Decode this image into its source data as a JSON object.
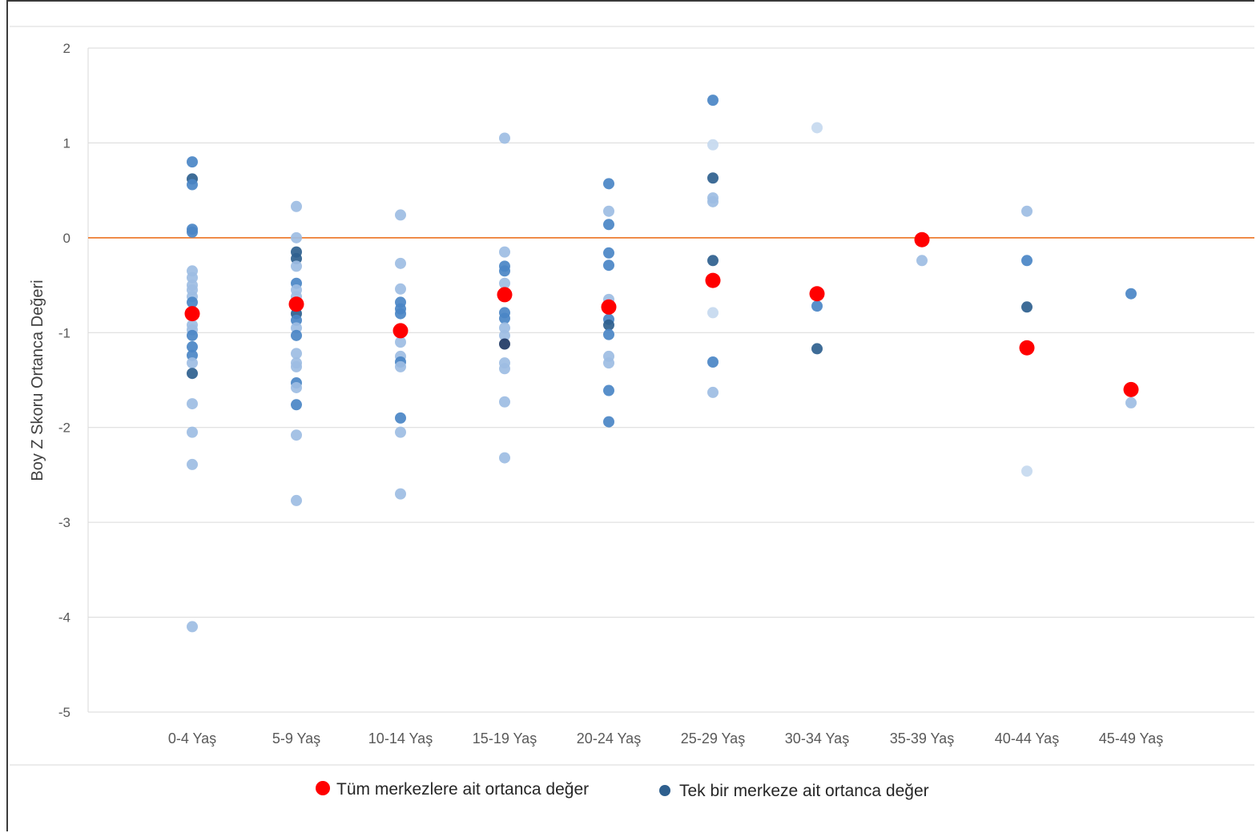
{
  "chart_data": {
    "type": "scatter",
    "ylabel": "Boy  Z Skoru Ortanca Değeri",
    "xlabel": "",
    "ylim": [
      -5,
      2
    ],
    "yticks": [
      "2",
      "1",
      "0",
      "-1",
      "-2",
      "-3",
      "-4",
      "-5"
    ],
    "categories": [
      "0-4 Yaş",
      "5-9 Yaş",
      "10-14 Yaş",
      "15-19 Yaş",
      "20-24 Yaş",
      "25-29 Yaş",
      "30-34 Yaş",
      "35-39 Yaş",
      "40-44 Yaş",
      "45-49 Yaş"
    ],
    "reference_line": {
      "y": 0,
      "color": "#ed7d31"
    },
    "grid": true,
    "legend_position": "bottom",
    "colors": {
      "overall": "#ff0000",
      "center_dark": "#1f3864",
      "center_mid": "#2e75b6",
      "center_light": "#9dc3e6",
      "center_pale": "#c5d9ef"
    },
    "series": [
      {
        "name": "Tüm merkezlere ait ortanca değer",
        "color": "#ff0000",
        "points": [
          {
            "x": "0-4 Yaş",
            "y": -0.8
          },
          {
            "x": "5-9 Yaş",
            "y": -0.7
          },
          {
            "x": "10-14 Yaş",
            "y": -0.98
          },
          {
            "x": "15-19 Yaş",
            "y": -0.6
          },
          {
            "x": "20-24 Yaş",
            "y": -0.73
          },
          {
            "x": "25-29 Yaş",
            "y": -0.45
          },
          {
            "x": "30-34 Yaş",
            "y": -0.59
          },
          {
            "x": "35-39 Yaş",
            "y": -0.02
          },
          {
            "x": "40-44 Yaş",
            "y": -1.16
          },
          {
            "x": "45-49 Yaş",
            "y": -1.6
          }
        ]
      },
      {
        "name": "Tek bir merkeze ait ortanca değer",
        "color": "#2e75b6",
        "points": [
          {
            "x": "0-4 Yaş",
            "y": 0.8,
            "shade": "mid"
          },
          {
            "x": "0-4 Yaş",
            "y": 0.62,
            "shade": "dark"
          },
          {
            "x": "0-4 Yaş",
            "y": 0.56,
            "shade": "mid"
          },
          {
            "x": "0-4 Yaş",
            "y": 0.09,
            "shade": "mid"
          },
          {
            "x": "0-4 Yaş",
            "y": 0.06,
            "shade": "mid"
          },
          {
            "x": "0-4 Yaş",
            "y": -0.35,
            "shade": "light"
          },
          {
            "x": "0-4 Yaş",
            "y": -0.42,
            "shade": "light"
          },
          {
            "x": "0-4 Yaş",
            "y": -0.5,
            "shade": "light"
          },
          {
            "x": "0-4 Yaş",
            "y": -0.55,
            "shade": "light"
          },
          {
            "x": "0-4 Yaş",
            "y": -0.62,
            "shade": "light"
          },
          {
            "x": "0-4 Yaş",
            "y": -0.68,
            "shade": "mid"
          },
          {
            "x": "0-4 Yaş",
            "y": -0.92,
            "shade": "light"
          },
          {
            "x": "0-4 Yaş",
            "y": -0.97,
            "shade": "light"
          },
          {
            "x": "0-4 Yaş",
            "y": -1.03,
            "shade": "mid"
          },
          {
            "x": "0-4 Yaş",
            "y": -1.15,
            "shade": "mid"
          },
          {
            "x": "0-4 Yaş",
            "y": -1.24,
            "shade": "mid"
          },
          {
            "x": "0-4 Yaş",
            "y": -1.32,
            "shade": "light"
          },
          {
            "x": "0-4 Yaş",
            "y": -1.43,
            "shade": "dark"
          },
          {
            "x": "0-4 Yaş",
            "y": -1.75,
            "shade": "light"
          },
          {
            "x": "0-4 Yaş",
            "y": -2.05,
            "shade": "light"
          },
          {
            "x": "0-4 Yaş",
            "y": -2.39,
            "shade": "light"
          },
          {
            "x": "0-4 Yaş",
            "y": -4.1,
            "shade": "light"
          },
          {
            "x": "5-9 Yaş",
            "y": 0.33,
            "shade": "light"
          },
          {
            "x": "5-9 Yaş",
            "y": 0.0,
            "shade": "light"
          },
          {
            "x": "5-9 Yaş",
            "y": -0.15,
            "shade": "dark"
          },
          {
            "x": "5-9 Yaş",
            "y": -0.22,
            "shade": "dark"
          },
          {
            "x": "5-9 Yaş",
            "y": -0.3,
            "shade": "light"
          },
          {
            "x": "5-9 Yaş",
            "y": -0.48,
            "shade": "mid"
          },
          {
            "x": "5-9 Yaş",
            "y": -0.55,
            "shade": "light"
          },
          {
            "x": "5-9 Yaş",
            "y": -0.62,
            "shade": "light"
          },
          {
            "x": "5-9 Yaş",
            "y": -0.8,
            "shade": "dark"
          },
          {
            "x": "5-9 Yaş",
            "y": -0.87,
            "shade": "mid"
          },
          {
            "x": "5-9 Yaş",
            "y": -0.95,
            "shade": "light"
          },
          {
            "x": "5-9 Yaş",
            "y": -1.03,
            "shade": "mid"
          },
          {
            "x": "5-9 Yaş",
            "y": -1.22,
            "shade": "light"
          },
          {
            "x": "5-9 Yaş",
            "y": -1.32,
            "shade": "light"
          },
          {
            "x": "5-9 Yaş",
            "y": -1.36,
            "shade": "light"
          },
          {
            "x": "5-9 Yaş",
            "y": -1.53,
            "shade": "mid"
          },
          {
            "x": "5-9 Yaş",
            "y": -1.58,
            "shade": "light"
          },
          {
            "x": "5-9 Yaş",
            "y": -1.76,
            "shade": "mid"
          },
          {
            "x": "5-9 Yaş",
            "y": -2.08,
            "shade": "light"
          },
          {
            "x": "5-9 Yaş",
            "y": -2.77,
            "shade": "light"
          },
          {
            "x": "10-14 Yaş",
            "y": 0.24,
            "shade": "light"
          },
          {
            "x": "10-14 Yaş",
            "y": -0.27,
            "shade": "light"
          },
          {
            "x": "10-14 Yaş",
            "y": -0.54,
            "shade": "light"
          },
          {
            "x": "10-14 Yaş",
            "y": -0.68,
            "shade": "mid"
          },
          {
            "x": "10-14 Yaş",
            "y": -0.75,
            "shade": "mid"
          },
          {
            "x": "10-14 Yaş",
            "y": -0.8,
            "shade": "mid"
          },
          {
            "x": "10-14 Yaş",
            "y": -1.1,
            "shade": "light"
          },
          {
            "x": "10-14 Yaş",
            "y": -1.25,
            "shade": "light"
          },
          {
            "x": "10-14 Yaş",
            "y": -1.31,
            "shade": "mid"
          },
          {
            "x": "10-14 Yaş",
            "y": -1.36,
            "shade": "light"
          },
          {
            "x": "10-14 Yaş",
            "y": -1.9,
            "shade": "mid"
          },
          {
            "x": "10-14 Yaş",
            "y": -2.05,
            "shade": "light"
          },
          {
            "x": "10-14 Yaş",
            "y": -2.7,
            "shade": "light"
          },
          {
            "x": "15-19 Yaş",
            "y": 1.05,
            "shade": "light"
          },
          {
            "x": "15-19 Yaş",
            "y": -0.15,
            "shade": "light"
          },
          {
            "x": "15-19 Yaş",
            "y": -0.3,
            "shade": "mid"
          },
          {
            "x": "15-19 Yaş",
            "y": -0.35,
            "shade": "mid"
          },
          {
            "x": "15-19 Yaş",
            "y": -0.48,
            "shade": "light"
          },
          {
            "x": "15-19 Yaş",
            "y": -0.79,
            "shade": "mid"
          },
          {
            "x": "15-19 Yaş",
            "y": -0.85,
            "shade": "mid"
          },
          {
            "x": "15-19 Yaş",
            "y": -0.95,
            "shade": "light"
          },
          {
            "x": "15-19 Yaş",
            "y": -1.03,
            "shade": "light"
          },
          {
            "x": "15-19 Yaş",
            "y": -1.12,
            "shade": "navy"
          },
          {
            "x": "15-19 Yaş",
            "y": -1.32,
            "shade": "light"
          },
          {
            "x": "15-19 Yaş",
            "y": -1.38,
            "shade": "light"
          },
          {
            "x": "15-19 Yaş",
            "y": -1.73,
            "shade": "light"
          },
          {
            "x": "15-19 Yaş",
            "y": -2.32,
            "shade": "light"
          },
          {
            "x": "20-24 Yaş",
            "y": 0.57,
            "shade": "mid"
          },
          {
            "x": "20-24 Yaş",
            "y": 0.28,
            "shade": "light"
          },
          {
            "x": "20-24 Yaş",
            "y": 0.14,
            "shade": "mid"
          },
          {
            "x": "20-24 Yaş",
            "y": -0.16,
            "shade": "mid"
          },
          {
            "x": "20-24 Yaş",
            "y": -0.29,
            "shade": "mid"
          },
          {
            "x": "20-24 Yaş",
            "y": -0.65,
            "shade": "light"
          },
          {
            "x": "20-24 Yaş",
            "y": -0.86,
            "shade": "mid"
          },
          {
            "x": "20-24 Yaş",
            "y": -0.92,
            "shade": "dark"
          },
          {
            "x": "20-24 Yaş",
            "y": -1.02,
            "shade": "mid"
          },
          {
            "x": "20-24 Yaş",
            "y": -1.25,
            "shade": "light"
          },
          {
            "x": "20-24 Yaş",
            "y": -1.32,
            "shade": "light"
          },
          {
            "x": "20-24 Yaş",
            "y": -1.61,
            "shade": "mid"
          },
          {
            "x": "20-24 Yaş",
            "y": -1.94,
            "shade": "mid"
          },
          {
            "x": "25-29 Yaş",
            "y": 1.45,
            "shade": "mid"
          },
          {
            "x": "25-29 Yaş",
            "y": 0.98,
            "shade": "pale"
          },
          {
            "x": "25-29 Yaş",
            "y": 0.63,
            "shade": "dark"
          },
          {
            "x": "25-29 Yaş",
            "y": 0.42,
            "shade": "light"
          },
          {
            "x": "25-29 Yaş",
            "y": 0.38,
            "shade": "light"
          },
          {
            "x": "25-29 Yaş",
            "y": -0.24,
            "shade": "dark"
          },
          {
            "x": "25-29 Yaş",
            "y": -0.79,
            "shade": "pale"
          },
          {
            "x": "25-29 Yaş",
            "y": -1.31,
            "shade": "mid"
          },
          {
            "x": "25-29 Yaş",
            "y": -1.63,
            "shade": "light"
          },
          {
            "x": "30-34 Yaş",
            "y": 1.16,
            "shade": "pale"
          },
          {
            "x": "30-34 Yaş",
            "y": -0.72,
            "shade": "mid"
          },
          {
            "x": "30-34 Yaş",
            "y": -1.17,
            "shade": "dark"
          },
          {
            "x": "35-39 Yaş",
            "y": -0.24,
            "shade": "light"
          },
          {
            "x": "40-44 Yaş",
            "y": 0.28,
            "shade": "light"
          },
          {
            "x": "40-44 Yaş",
            "y": -0.24,
            "shade": "mid"
          },
          {
            "x": "40-44 Yaş",
            "y": -0.73,
            "shade": "dark"
          },
          {
            "x": "40-44 Yaş",
            "y": -2.46,
            "shade": "pale"
          },
          {
            "x": "45-49 Yaş",
            "y": -0.59,
            "shade": "mid"
          },
          {
            "x": "45-49 Yaş",
            "y": -1.74,
            "shade": "light"
          }
        ]
      }
    ]
  }
}
